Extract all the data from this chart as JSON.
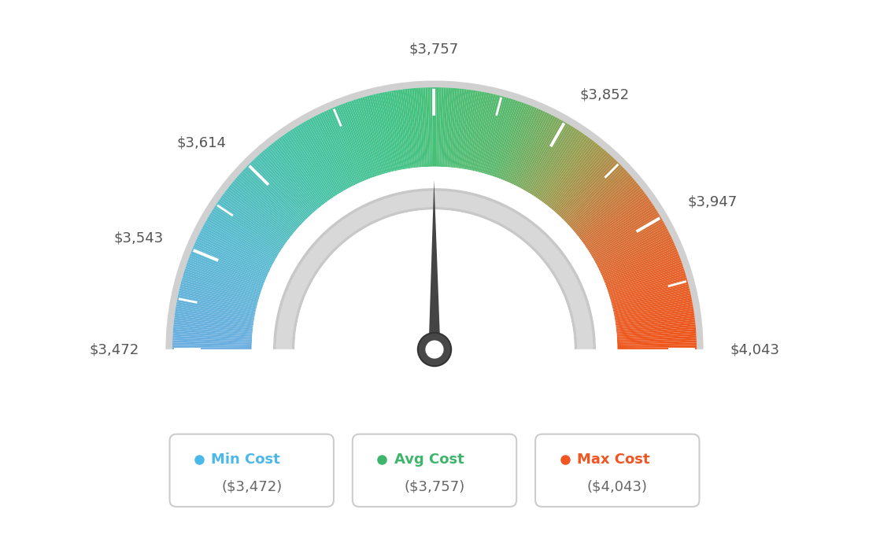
{
  "min_val": 3472,
  "max_val": 4043,
  "avg_val": 3757,
  "needle_value": 3757,
  "tick_labels": [
    "$3,472",
    "$3,543",
    "$3,614",
    "$3,757",
    "$3,852",
    "$3,947",
    "$4,043"
  ],
  "tick_values": [
    3472,
    3543,
    3614,
    3757,
    3852,
    3947,
    4043
  ],
  "legend": [
    {
      "label": "Min Cost",
      "value": "($3,472)",
      "color": "#4bb8ea"
    },
    {
      "label": "Avg Cost",
      "value": "($3,757)",
      "color": "#3db56b"
    },
    {
      "label": "Max Cost",
      "value": "($4,043)",
      "color": "#f05522"
    }
  ],
  "bg_color": "#ffffff",
  "color_stops": [
    [
      0.0,
      [
        0.42,
        0.68,
        0.88
      ]
    ],
    [
      0.15,
      [
        0.35,
        0.73,
        0.82
      ]
    ],
    [
      0.3,
      [
        0.28,
        0.76,
        0.65
      ]
    ],
    [
      0.45,
      [
        0.26,
        0.76,
        0.52
      ]
    ],
    [
      0.5,
      [
        0.28,
        0.75,
        0.47
      ]
    ],
    [
      0.6,
      [
        0.35,
        0.72,
        0.42
      ]
    ],
    [
      0.7,
      [
        0.6,
        0.62,
        0.32
      ]
    ],
    [
      0.8,
      [
        0.82,
        0.45,
        0.22
      ]
    ],
    [
      0.9,
      [
        0.9,
        0.38,
        0.16
      ]
    ],
    [
      1.0,
      [
        0.93,
        0.33,
        0.1
      ]
    ]
  ]
}
